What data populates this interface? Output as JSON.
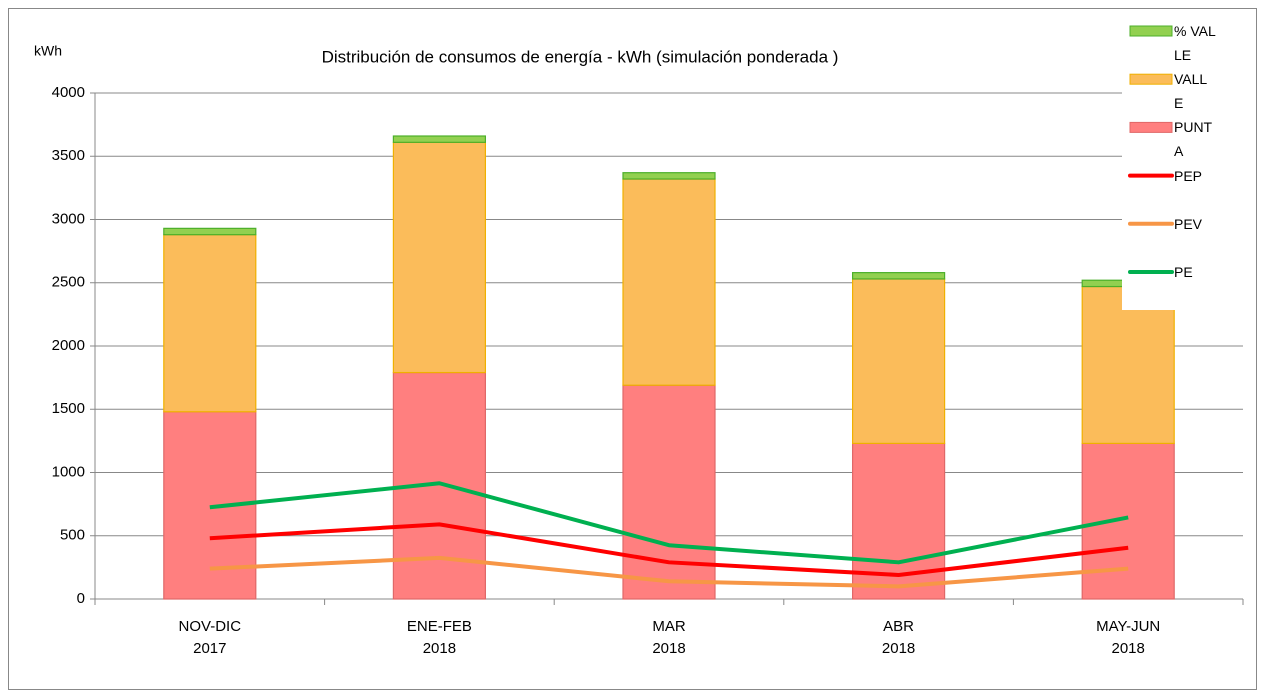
{
  "chart_data": {
    "type": "bar",
    "title": "Distribución de consumos de energía - kWh (simulación ponderada )",
    "y_label": "kWh",
    "categories": [
      [
        "NOV-DIC",
        "2017"
      ],
      [
        "ENE-FEB",
        "2018"
      ],
      [
        "MAR",
        "2018"
      ],
      [
        "ABR",
        "2018"
      ],
      [
        "MAY-JUN",
        "2018"
      ]
    ],
    "series": [
      {
        "name": "% VALLE",
        "type": "bar",
        "color": "#92d050",
        "stroke": "#4caf2a",
        "values": [
          50,
          50,
          50,
          50,
          50
        ]
      },
      {
        "name": "VALLE",
        "type": "bar",
        "color": "#fbbc5a",
        "stroke": "#f0b000",
        "values": [
          1400,
          1820,
          1630,
          1300,
          1240
        ]
      },
      {
        "name": "PUNTA",
        "type": "bar",
        "color": "#ff7f7f",
        "stroke": "#e06868",
        "values": [
          1480,
          1790,
          1690,
          1230,
          1230
        ]
      },
      {
        "name": "PEP",
        "type": "line",
        "color": "#ff0000",
        "values": [
          480,
          590,
          290,
          190,
          405
        ]
      },
      {
        "name": "PEV",
        "type": "line",
        "color": "#f79646",
        "values": [
          240,
          325,
          140,
          100,
          240
        ]
      },
      {
        "name": "PE",
        "type": "line",
        "color": "#00b050",
        "values": [
          725,
          915,
          425,
          290,
          645
        ]
      }
    ],
    "ylim": [
      0,
      4000
    ],
    "yticks": [
      0,
      500,
      1000,
      1500,
      2000,
      2500,
      3000,
      3500,
      4000
    ],
    "grid": true
  }
}
